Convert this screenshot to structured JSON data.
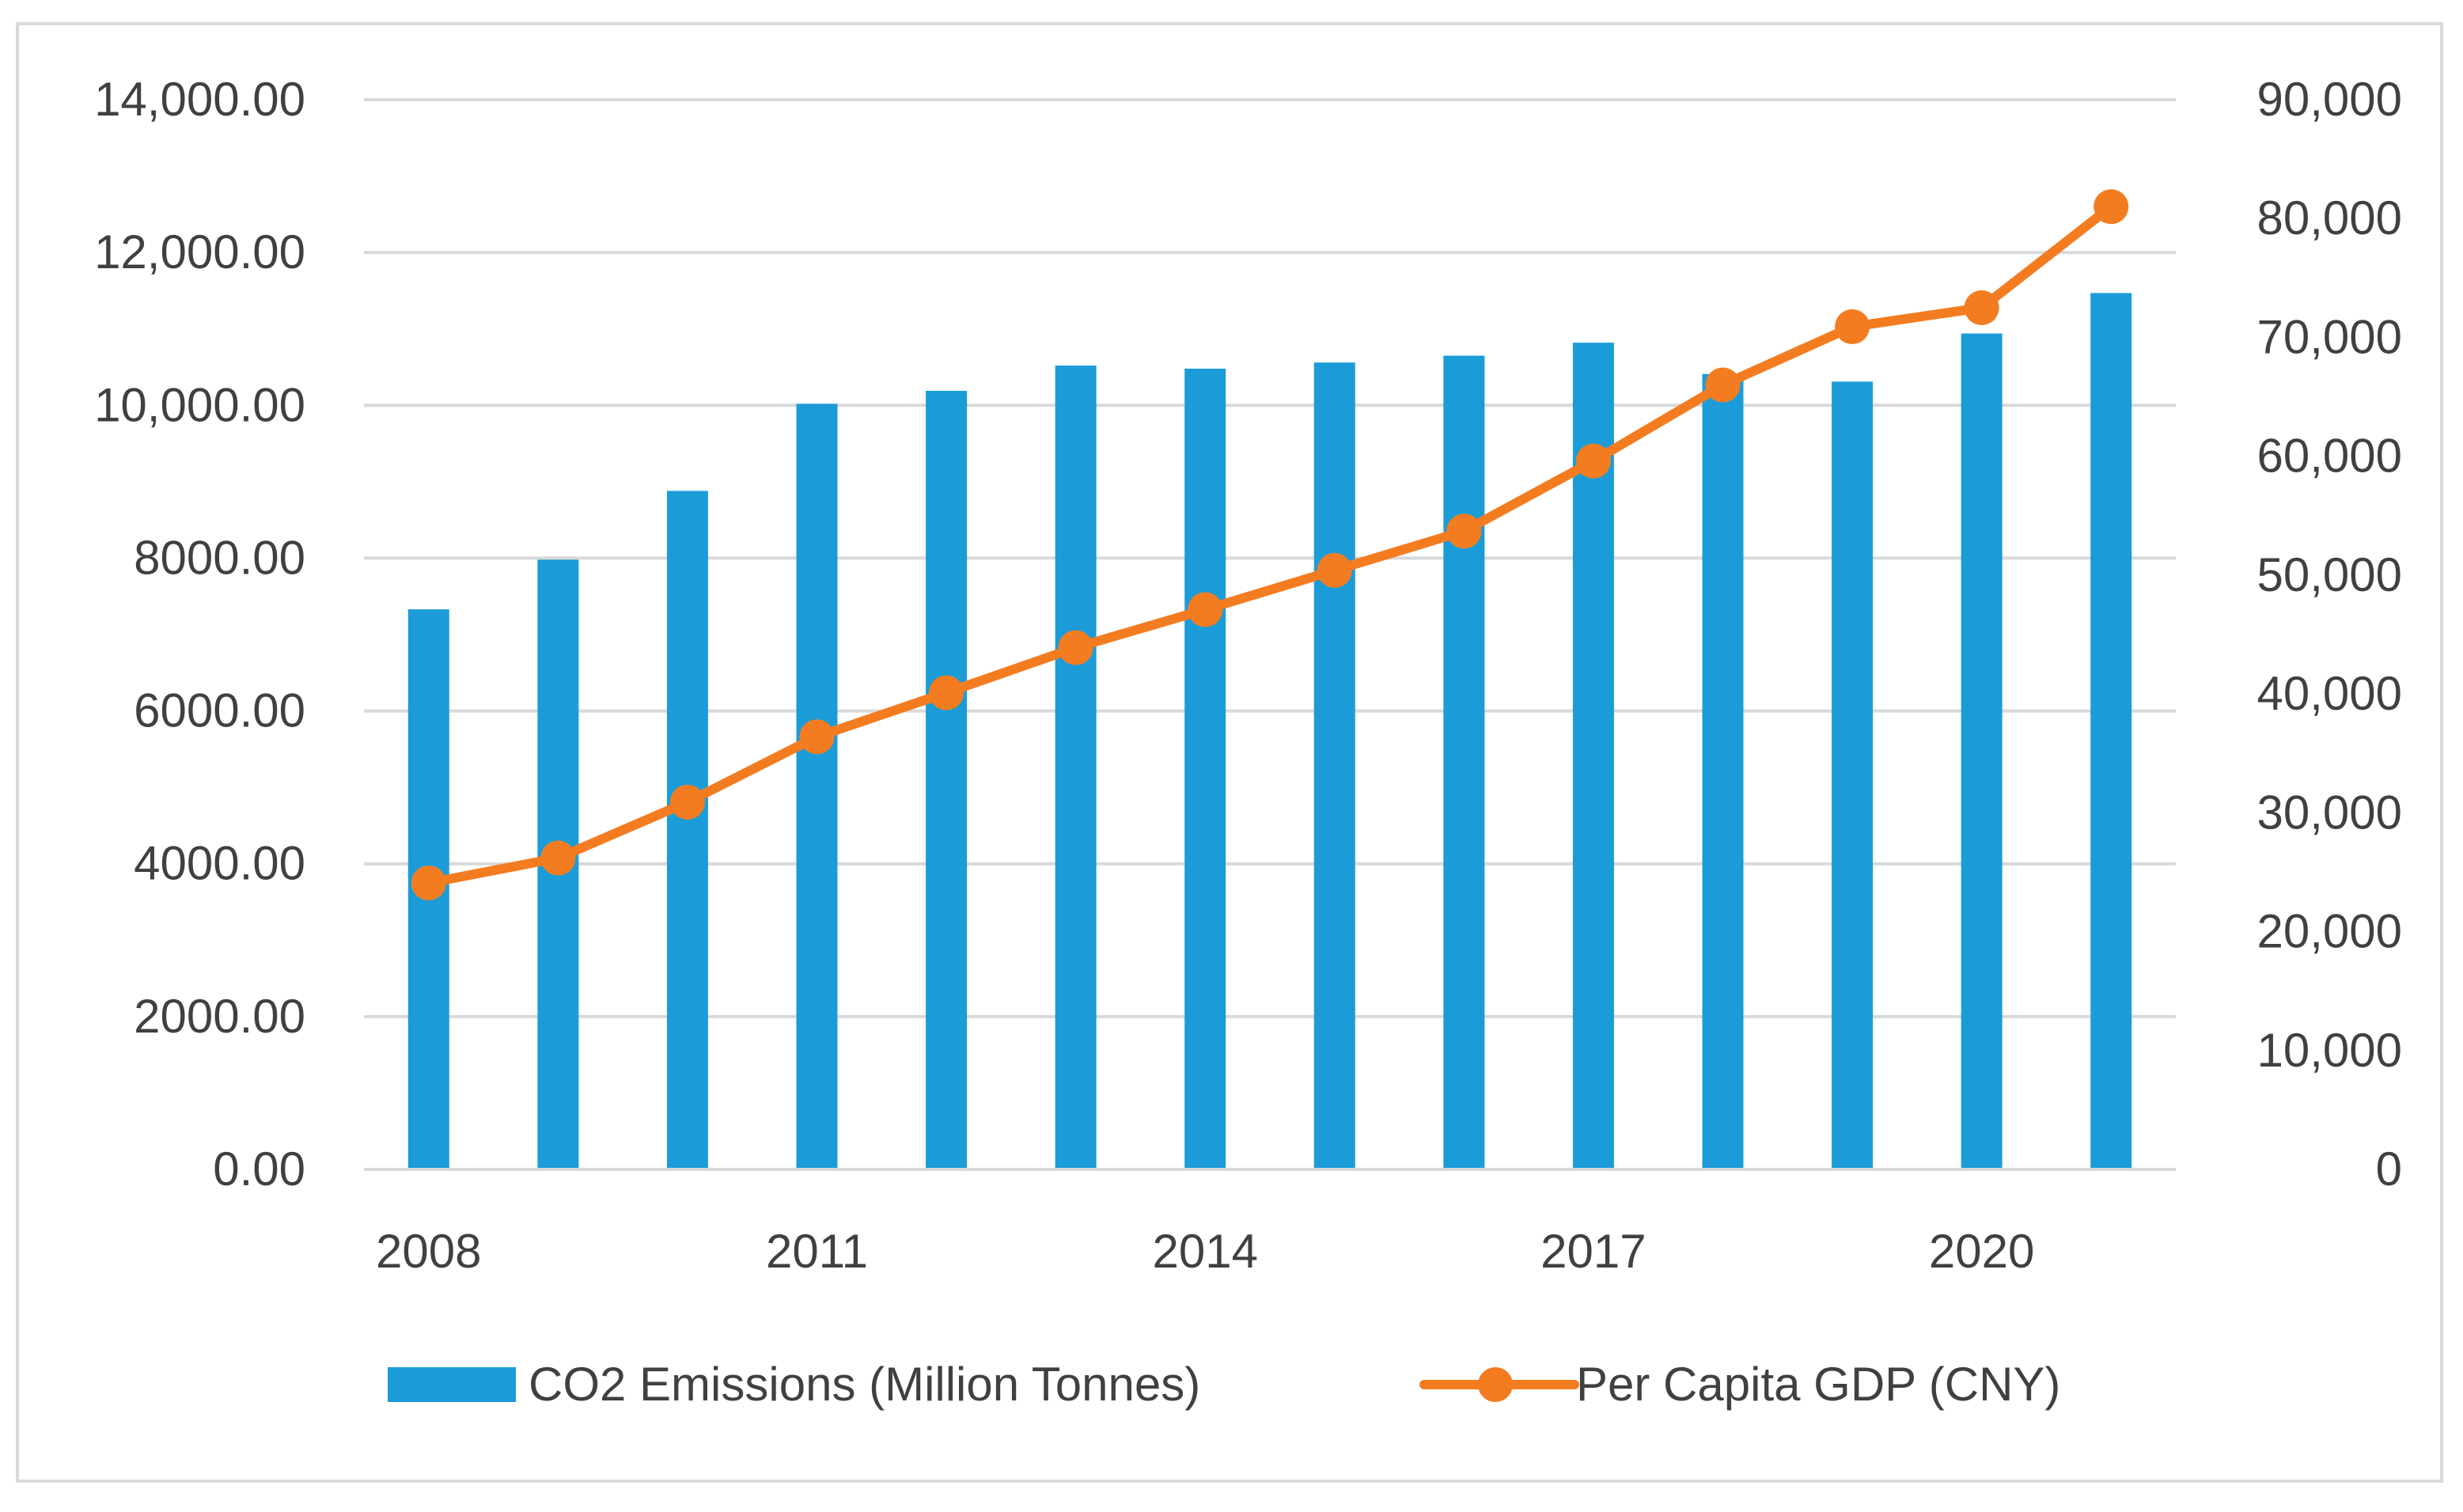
{
  "chart_data": {
    "type": "bar+line",
    "title": "",
    "categories": [
      "2008",
      "2009",
      "2010",
      "2011",
      "2012",
      "2013",
      "2014",
      "2015",
      "2016",
      "2017",
      "2018",
      "2019",
      "2020",
      "2021"
    ],
    "x_tick_labels": [
      "2008",
      "2011",
      "2014",
      "2017",
      "2020"
    ],
    "series": [
      {
        "name": "CO2 Emissions (Million Tonnes)",
        "type": "bar",
        "axis": "left",
        "color": "#1b9cd8",
        "values": [
          7330,
          7980,
          8880,
          10020,
          10190,
          10520,
          10480,
          10560,
          10650,
          10820,
          10410,
          10310,
          10940,
          11470
        ]
      },
      {
        "name": "Per Capita GDP (CNY)",
        "type": "line",
        "axis": "right",
        "color": "#f47c20",
        "values": [
          24100,
          26200,
          30900,
          36400,
          40100,
          43900,
          47100,
          50400,
          53700,
          59600,
          66000,
          70900,
          72500,
          81000
        ]
      }
    ],
    "y_left": {
      "min": 0,
      "max": 14000,
      "ticks": [
        0,
        2000,
        4000,
        6000,
        8000,
        10000,
        12000,
        14000
      ],
      "tick_labels": [
        "0.00",
        "2000.00",
        "4000.00",
        "6000.00",
        "8000.00",
        "10,000.00",
        "12,000.00",
        "14,000.00"
      ]
    },
    "y_right": {
      "min": 0,
      "max": 90000,
      "ticks": [
        0,
        10000,
        20000,
        30000,
        40000,
        50000,
        60000,
        70000,
        80000,
        90000
      ],
      "tick_labels": [
        "0",
        "10,000",
        "20,000",
        "30,000",
        "40,000",
        "50,000",
        "60,000",
        "70,000",
        "80,000",
        "90,000"
      ]
    },
    "grid": true,
    "legend_position": "bottom",
    "border_color": "#d9d9d9",
    "grid_color": "#d9d9d9"
  }
}
